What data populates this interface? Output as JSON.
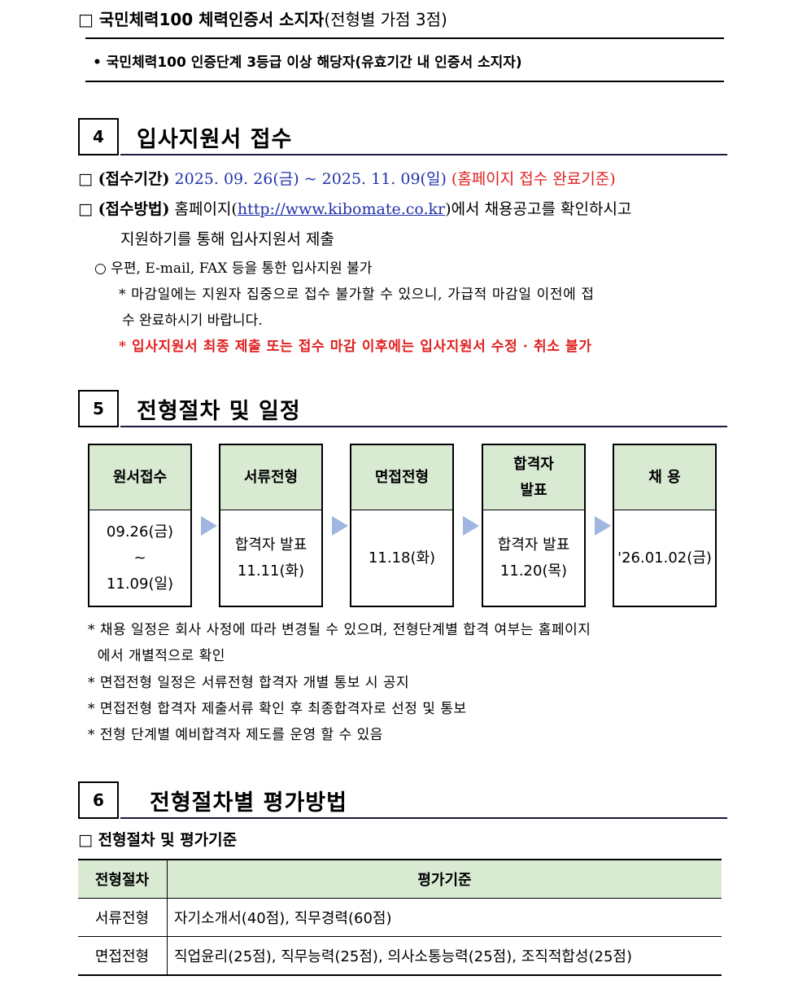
{
  "cert": {
    "heading_bold": "□ 국민체력100 체력인증서 소지자",
    "heading_normal": "(전형별 가점 3점)",
    "bullet": "• 국민체력100 인증단계 3등급 이상 해당자(유효기간 내 인증서 소지자)"
  },
  "section4": {
    "num": "4",
    "title": "입사지원서 접수",
    "period_label": "□ (접수기간)",
    "period_value": "2025. 09. 26(금) ~ 2025. 11. 09(일)",
    "period_note": "(홈페이지 접수 완료기준)",
    "method_label": "□ (접수방법)",
    "method_pre": "홈페이지(",
    "method_link": "http://www.kibomate.co.kr",
    "method_post": ")에서 채용공고를 확인하시고",
    "method_line2": "지원하기를 통해 입사지원서 제출",
    "bullet": "○ 우편, E-mail, FAX 등을 통한 입사지원 불가",
    "note1_line1": "* 마감일에는 지원자 집중으로 접수 불가할 수 있으니, 가급적 마감일 이전에 접",
    "note1_line2": "수 완료하시기 바랍니다.",
    "note2": "* 입사지원서 최종 제출 또는 접수 마감 이후에는 입사지원서 수정 · 취소 불가"
  },
  "section5": {
    "num": "5",
    "title": "전형절차 및 일정",
    "steps": [
      {
        "title": "원서접수",
        "detail": "09.26(금)\n~\n11.09(일)"
      },
      {
        "title": "서류전형",
        "detail": "합격자 발표\n11.11(화)"
      },
      {
        "title": "면접전형",
        "detail": "11.18(화)"
      },
      {
        "title": "합격자\n발표",
        "detail": "합격자 발표\n11.20(목)"
      },
      {
        "title": "채   용",
        "detail": "'26.01.02(금)"
      }
    ],
    "notes": [
      "* 채용 일정은 회사 사정에 따라 변경될 수 있으며, 전형단계별 합격 여부는 홈페이지",
      "  에서 개별적으로 확인",
      "* 면접전형 일정은 서류전형 합격자 개별 통보 시 공지",
      "* 면접전형 합격자 제출서류 확인 후 최종합격자로 선정 및 통보",
      "* 전형 단계별 예비합격자 제도를 운영 할 수 있음"
    ]
  },
  "section6": {
    "num": "6",
    "title": "전형절차별 평가방법",
    "subheading": "□ 전형절차 및 평가기준",
    "table": {
      "headers": [
        "전형절차",
        "평가기준"
      ],
      "rows": [
        [
          "서류전형",
          "자기소개서(40점), 직무경력(60점)"
        ],
        [
          "면접전형",
          "직업윤리(25점), 직무능력(25점), 의사소통능력(25점), 조직적합성(25점)"
        ]
      ]
    }
  },
  "colors": {
    "accent_green": "#d9ead3",
    "link_blue": "#2233aa",
    "warning_red": "#e02020"
  }
}
